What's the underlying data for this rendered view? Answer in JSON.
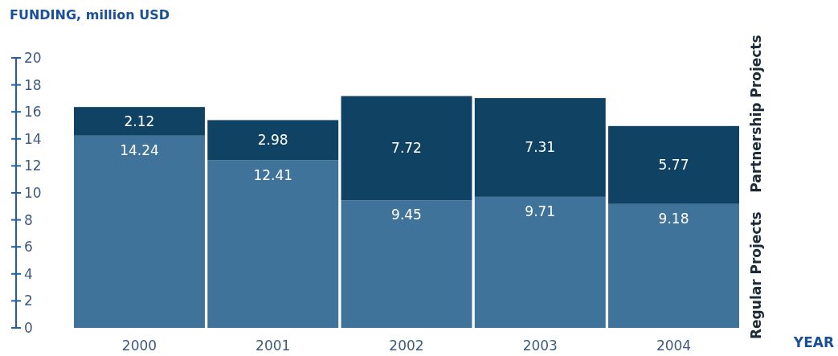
{
  "chart_data": {
    "type": "bar",
    "stacked": true,
    "ylabel": "FUNDING, million USD",
    "xlabel": "YEAR",
    "categories": [
      "2000",
      "2001",
      "2002",
      "2003",
      "2004"
    ],
    "series": [
      {
        "name": "Regular Projects",
        "color": "#3f7399",
        "values": [
          14.24,
          12.41,
          9.45,
          9.71,
          9.18
        ]
      },
      {
        "name": "Partnership Projects",
        "color": "#0f4263",
        "values": [
          2.12,
          2.98,
          7.72,
          7.31,
          5.77
        ]
      }
    ],
    "ylim": [
      0,
      20
    ],
    "yticks": [
      0,
      2,
      4,
      6,
      8,
      10,
      12,
      14,
      16,
      18,
      20
    ],
    "data_labels": true,
    "grid": false,
    "legend": "right"
  }
}
